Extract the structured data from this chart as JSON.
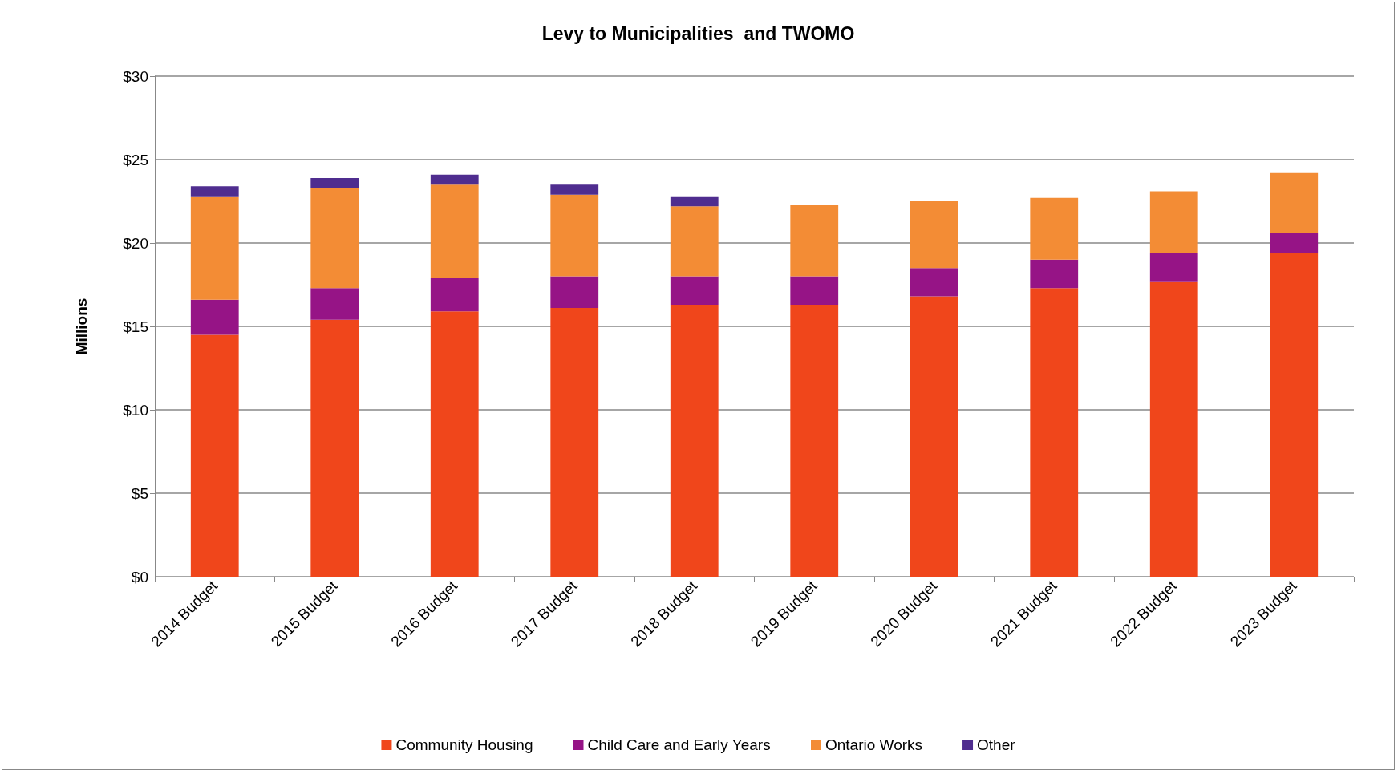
{
  "chart_data": {
    "type": "bar",
    "title": "Levy to Municipalities  and TWOMO",
    "ylabel": "Millions",
    "categories": [
      "2014 Budget",
      "2015 Budget",
      "2016 Budget",
      "2017 Budget",
      "2018 Budget",
      "2019 Budget",
      "2020 Budget",
      "2021 Budget",
      "2022 Budget",
      "2023 Budget"
    ],
    "stacked": true,
    "series": [
      {
        "name": "Community Housing",
        "color": "#f0461b",
        "values": [
          14.5,
          15.4,
          15.9,
          16.1,
          16.3,
          16.3,
          16.8,
          17.3,
          17.7,
          19.4
        ]
      },
      {
        "name": "Child Care and Early Years",
        "color": "#961486",
        "values": [
          2.1,
          1.9,
          2.0,
          1.9,
          1.7,
          1.7,
          1.7,
          1.7,
          1.7,
          1.2
        ]
      },
      {
        "name": "Ontario Works",
        "color": "#f38c35",
        "values": [
          6.2,
          6.0,
          5.6,
          4.9,
          4.2,
          4.3,
          4.0,
          3.7,
          3.7,
          3.6
        ]
      },
      {
        "name": "Other",
        "color": "#4f2d8f",
        "values": [
          0.6,
          0.6,
          0.6,
          0.6,
          0.6,
          null,
          null,
          null,
          null,
          null
        ]
      }
    ],
    "ylim": [
      0,
      30
    ],
    "yticks": [
      {
        "value": 0,
        "label": "$0"
      },
      {
        "value": 5,
        "label": "$5"
      },
      {
        "value": 10,
        "label": "$10"
      },
      {
        "value": 15,
        "label": "$15"
      },
      {
        "value": 20,
        "label": "$20"
      },
      {
        "value": 25,
        "label": "$25"
      },
      {
        "value": 30,
        "label": "$30"
      }
    ],
    "grid": "y",
    "legend": "bottom"
  }
}
